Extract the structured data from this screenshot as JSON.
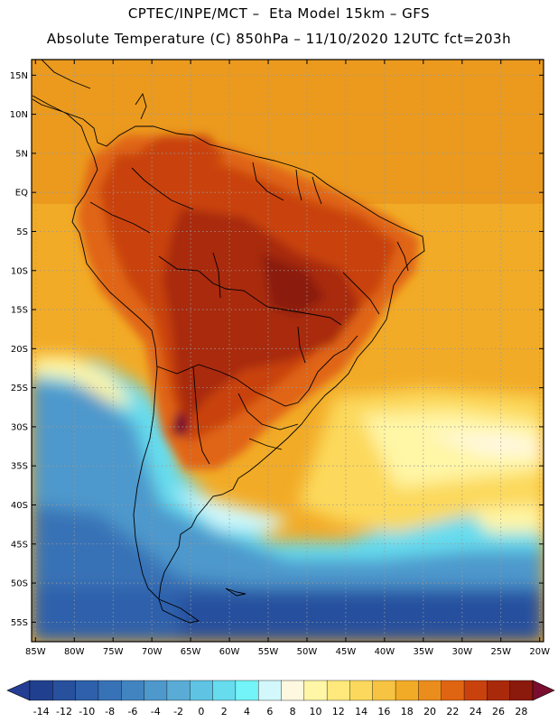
{
  "header": {
    "line1": "CPTEC/INPE/MCT –  Eta Model 15km – GFS",
    "line2": "Absolute Temperature (C) 850hPa – 11/10/2020 12UTC fct=203h"
  },
  "map": {
    "lat_labels": [
      "15N",
      "10N",
      "5N",
      "EQ",
      "5S",
      "10S",
      "15S",
      "20S",
      "25S",
      "30S",
      "35S",
      "40S",
      "45S",
      "50S",
      "55S"
    ],
    "lon_labels": [
      "85W",
      "80W",
      "75W",
      "70W",
      "65W",
      "60W",
      "55W",
      "50W",
      "45W",
      "40W",
      "35W",
      "30W",
      "25W",
      "20W"
    ],
    "lat_range": [
      17,
      -57.5
    ],
    "lon_range": [
      -85.5,
      -19.5
    ],
    "grid": true
  },
  "colorbar": {
    "labels": [
      "-14",
      "-12",
      "-10",
      "-8",
      "-6",
      "-4",
      "-2",
      "0",
      "2",
      "4",
      "6",
      "8",
      "10",
      "12",
      "14",
      "16",
      "18",
      "20",
      "22",
      "24",
      "26",
      "28"
    ],
    "colors": [
      "#20408f",
      "#27509d",
      "#2e60ab",
      "#3872b6",
      "#4284c0",
      "#4e98cc",
      "#5aacd6",
      "#5fc4e4",
      "#66dcee",
      "#72f4f8",
      "#d2f8fc",
      "#fff8e0",
      "#fff6a6",
      "#ffe97c",
      "#fcd95c",
      "#f6c342",
      "#f2ab26",
      "#eb8d1c",
      "#e06512",
      "#c9420d",
      "#a92a0b",
      "#8b1a0c"
    ],
    "low_color": "#243e93",
    "high_color": "#7a0e2e"
  }
}
